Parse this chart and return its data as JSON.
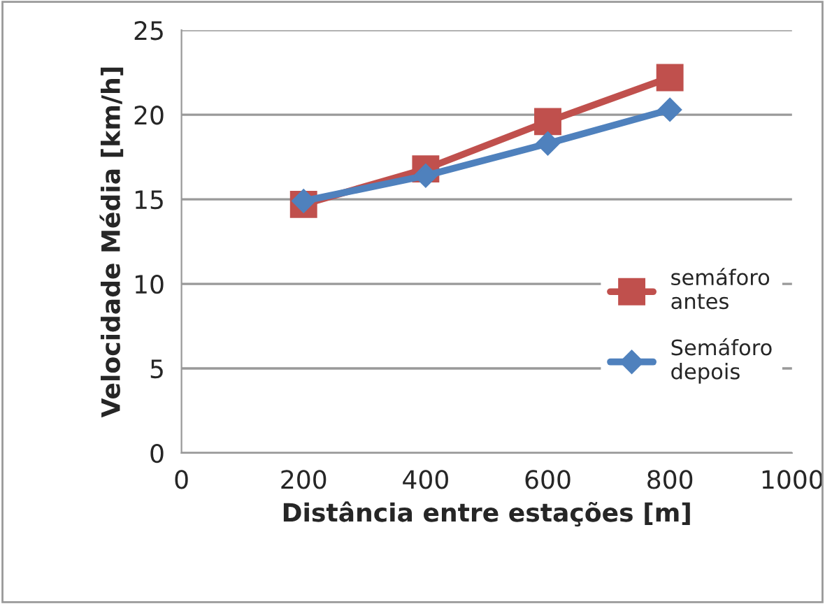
{
  "chart_data": {
    "type": "line",
    "xlabel": "Distância entre estações [m]",
    "ylabel": "Velocidade Média [km/h]",
    "x": [
      200,
      400,
      600,
      800
    ],
    "series": [
      {
        "name": "semáforo\nantes",
        "color": "#c0504d",
        "marker": "square",
        "values": [
          14.7,
          16.8,
          19.6,
          22.2
        ]
      },
      {
        "name": "Semáforo\ndepois",
        "color": "#4f81bd",
        "marker": "diamond",
        "values": [
          14.9,
          16.4,
          18.3,
          20.3
        ]
      }
    ],
    "xlim": [
      0,
      1000
    ],
    "xticks": [
      0,
      200,
      400,
      600,
      800,
      1000
    ],
    "ylim": [
      0,
      25
    ],
    "yticks": [
      0,
      5,
      10,
      15,
      20,
      25
    ],
    "grid": "y",
    "legend": "right",
    "line_style": "solid"
  }
}
